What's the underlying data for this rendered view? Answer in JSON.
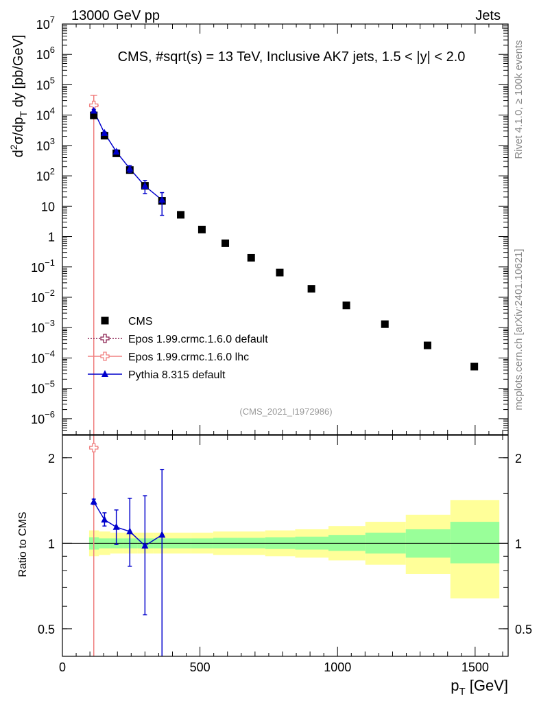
{
  "header": {
    "left": "13000 GeV pp",
    "right": "Jets"
  },
  "side_labels": {
    "rivet": "Rivet 4.1.0, ≥ 100k events",
    "mcplots": "mcplots.cern.ch [arXiv:2401.10621]"
  },
  "chart_data": [
    {
      "type": "scatter",
      "title": "CMS, #sqrt(s) = 13 TeV, Inclusive AK7 jets, 1.5 < |y| < 2.0",
      "analysis_id": "(CMS_2021_I1972986)",
      "ylabel": {
        "main": "d",
        "sup1": "2",
        "mid": "σ/dp",
        "sub": "T",
        "tail": " dy [pb/GeV]"
      },
      "yscale": "log",
      "ylim": [
        3e-07,
        10000000.0
      ],
      "xlim": [
        0,
        1620
      ],
      "y_ticks": [
        {
          "v": 10000000.0,
          "base": "10",
          "exp": "7"
        },
        {
          "v": 1000000.0,
          "base": "10",
          "exp": "6"
        },
        {
          "v": 100000.0,
          "base": "10",
          "exp": "5"
        },
        {
          "v": 10000.0,
          "base": "10",
          "exp": "4"
        },
        {
          "v": 1000.0,
          "base": "10",
          "exp": "3"
        },
        {
          "v": 100.0,
          "base": "10",
          "exp": "2"
        },
        {
          "v": 10,
          "base": "10",
          "exp": ""
        },
        {
          "v": 1,
          "base": "1",
          "exp": ""
        },
        {
          "v": 0.1,
          "base": "10",
          "exp": "−1"
        },
        {
          "v": 0.01,
          "base": "10",
          "exp": "−2"
        },
        {
          "v": 0.001,
          "base": "10",
          "exp": "−3"
        },
        {
          "v": 0.0001,
          "base": "10",
          "exp": "−4"
        },
        {
          "v": 1e-05,
          "base": "10",
          "exp": "−5"
        },
        {
          "v": 1e-06,
          "base": "10",
          "exp": "−6"
        }
      ],
      "legend": {
        "placement": "bottom-left",
        "entries": [
          {
            "label": "CMS",
            "color": "#000000",
            "marker": "square"
          },
          {
            "label": "Epos 1.99.crmc.1.6.0 default",
            "color": "#8b2252",
            "marker": "open-cross",
            "line": "dotted"
          },
          {
            "label": "Epos 1.99.crmc.1.6.0 lhc",
            "color": "#f08080",
            "marker": "open-cross",
            "line": "solid"
          },
          {
            "label": "Pythia 8.315 default",
            "color": "#0000cc",
            "marker": "triangle",
            "line": "solid"
          }
        ]
      },
      "series": [
        {
          "name": "CMS",
          "color": "#000000",
          "points": [
            {
              "x": 114,
              "y": 9800
            },
            {
              "x": 153,
              "y": 2100
            },
            {
              "x": 196,
              "y": 550
            },
            {
              "x": 245,
              "y": 155
            },
            {
              "x": 300,
              "y": 47
            },
            {
              "x": 362,
              "y": 15
            },
            {
              "x": 430,
              "y": 5.2
            },
            {
              "x": 507,
              "y": 1.7
            },
            {
              "x": 592,
              "y": 0.6
            },
            {
              "x": 686,
              "y": 0.2
            },
            {
              "x": 790,
              "y": 0.065
            },
            {
              "x": 905,
              "y": 0.019
            },
            {
              "x": 1032,
              "y": 0.0054
            },
            {
              "x": 1172,
              "y": 0.0013
            },
            {
              "x": 1327,
              "y": 0.00026
            },
            {
              "x": 1497,
              "y": 5.2e-05
            }
          ]
        },
        {
          "name": "Epos 1.99.crmc.1.6.0 lhc",
          "color": "#f08080",
          "points": [
            {
              "x": 114,
              "y": 21000,
              "ylo": 3e-07,
              "yhi": 45000,
              "xlo": 97,
              "xhi": 132
            }
          ]
        },
        {
          "name": "Pythia 8.315 default",
          "color": "#0000cc",
          "points": [
            {
              "x": 114,
              "y": 13800,
              "ylo": 12500,
              "yhi": 15200
            },
            {
              "x": 153,
              "y": 2550,
              "ylo": 2300,
              "yhi": 2800
            },
            {
              "x": 196,
              "y": 620,
              "ylo": 520,
              "yhi": 720
            },
            {
              "x": 245,
              "y": 172,
              "ylo": 130,
              "yhi": 215
            },
            {
              "x": 300,
              "y": 46,
              "ylo": 26,
              "yhi": 70
            },
            {
              "x": 362,
              "y": 16,
              "ylo": 5,
              "yhi": 28
            }
          ]
        }
      ]
    },
    {
      "type": "scatter",
      "ylabel": "Ratio to CMS",
      "xlabel": {
        "main": "p",
        "sub": "T",
        "tail": " [GeV]"
      },
      "yscale": "log",
      "ylim": [
        0.4,
        2.4
      ],
      "xlim": [
        0,
        1620
      ],
      "reference_line": 1,
      "y_ticks": [
        {
          "v": 0.5,
          "label": "0.5"
        },
        {
          "v": 1,
          "label": "1"
        },
        {
          "v": 2,
          "label": "2"
        }
      ],
      "x_ticks": [
        {
          "v": 0,
          "label": "0"
        },
        {
          "v": 500,
          "label": "500"
        },
        {
          "v": 1000,
          "label": "1000"
        },
        {
          "v": 1500,
          "label": "1500"
        }
      ],
      "bands": [
        {
          "x0": 97,
          "x1": 133,
          "stat_lo": 0.95,
          "stat_hi": 1.05,
          "tot_lo": 0.9,
          "tot_hi": 1.11
        },
        {
          "x0": 133,
          "x1": 174,
          "stat_lo": 0.96,
          "stat_hi": 1.04,
          "tot_lo": 0.91,
          "tot_hi": 1.1
        },
        {
          "x0": 174,
          "x1": 220,
          "stat_lo": 0.96,
          "stat_hi": 1.04,
          "tot_lo": 0.92,
          "tot_hi": 1.09
        },
        {
          "x0": 220,
          "x1": 272,
          "stat_lo": 0.96,
          "stat_hi": 1.04,
          "tot_lo": 0.92,
          "tot_hi": 1.09
        },
        {
          "x0": 272,
          "x1": 330,
          "stat_lo": 0.96,
          "stat_hi": 1.04,
          "tot_lo": 0.92,
          "tot_hi": 1.09
        },
        {
          "x0": 330,
          "x1": 395,
          "stat_lo": 0.96,
          "stat_hi": 1.04,
          "tot_lo": 0.92,
          "tot_hi": 1.09
        },
        {
          "x0": 395,
          "x1": 468,
          "stat_lo": 0.96,
          "stat_hi": 1.04,
          "tot_lo": 0.92,
          "tot_hi": 1.09
        },
        {
          "x0": 468,
          "x1": 548,
          "stat_lo": 0.96,
          "stat_hi": 1.04,
          "tot_lo": 0.92,
          "tot_hi": 1.09
        },
        {
          "x0": 548,
          "x1": 638,
          "stat_lo": 0.96,
          "stat_hi": 1.045,
          "tot_lo": 0.91,
          "tot_hi": 1.1
        },
        {
          "x0": 638,
          "x1": 737,
          "stat_lo": 0.96,
          "stat_hi": 1.045,
          "tot_lo": 0.91,
          "tot_hi": 1.1
        },
        {
          "x0": 737,
          "x1": 846,
          "stat_lo": 0.955,
          "stat_hi": 1.05,
          "tot_lo": 0.9,
          "tot_hi": 1.11
        },
        {
          "x0": 846,
          "x1": 967,
          "stat_lo": 0.95,
          "stat_hi": 1.055,
          "tot_lo": 0.89,
          "tot_hi": 1.12
        },
        {
          "x0": 967,
          "x1": 1101,
          "stat_lo": 0.94,
          "stat_hi": 1.07,
          "tot_lo": 0.87,
          "tot_hi": 1.15
        },
        {
          "x0": 1101,
          "x1": 1248,
          "stat_lo": 0.92,
          "stat_hi": 1.09,
          "tot_lo": 0.84,
          "tot_hi": 1.19
        },
        {
          "x0": 1248,
          "x1": 1410,
          "stat_lo": 0.89,
          "stat_hi": 1.12,
          "tot_lo": 0.78,
          "tot_hi": 1.26
        },
        {
          "x0": 1410,
          "x1": 1588,
          "stat_lo": 0.85,
          "stat_hi": 1.19,
          "tot_lo": 0.64,
          "tot_hi": 1.42
        }
      ],
      "band_colors": {
        "total": "#ffff99",
        "stat": "#99ff99"
      },
      "series": [
        {
          "name": "Epos 1.99.crmc.1.6.0 lhc",
          "color": "#f08080",
          "points": [
            {
              "x": 114,
              "y": 2.17,
              "xlo": 97,
              "xhi": 132
            }
          ]
        },
        {
          "name": "Pythia 8.315 default",
          "color": "#0000cc",
          "points": [
            {
              "x": 114,
              "y": 1.4,
              "ylo": 1.37,
              "yhi": 1.43
            },
            {
              "x": 153,
              "y": 1.21,
              "ylo": 1.15,
              "yhi": 1.28
            },
            {
              "x": 196,
              "y": 1.14,
              "ylo": 0.99,
              "yhi": 1.31
            },
            {
              "x": 245,
              "y": 1.1,
              "ylo": 0.83,
              "yhi": 1.44
            },
            {
              "x": 300,
              "y": 0.98,
              "ylo": 0.56,
              "yhi": 1.47
            },
            {
              "x": 362,
              "y": 1.07,
              "ylo": 0.35,
              "yhi": 1.82
            }
          ]
        }
      ]
    }
  ]
}
